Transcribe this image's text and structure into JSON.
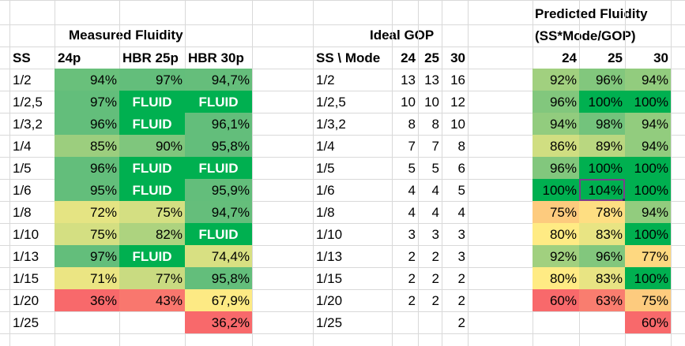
{
  "titles": {
    "measured": "Measured Fluidity",
    "ideal": "Ideal GOP",
    "predicted_line1": "Predicted Fluidity",
    "predicted_line2": "(SS*Mode/GOP)"
  },
  "headers": {
    "ss": "SS",
    "m24": "24p",
    "m25": "HBR 25p",
    "m30": "HBR 30p",
    "ss_mode": "SS \\ Mode",
    "g24": "24",
    "g25": "25",
    "g30": "30",
    "p24": "24",
    "p25": "25",
    "p30": "30"
  },
  "colors": {
    "fluid": "#00b050",
    "green": "#63be7b",
    "yellow": "#ffeb84",
    "red": "#f8696b"
  },
  "selected_cell": "104%",
  "rows": [
    {
      "ss": "1/2",
      "m24": "94%",
      "m25": "97%",
      "m30": "94,7%",
      "g24": "13",
      "g25": "13",
      "g30": "16",
      "p24": "92%",
      "p25": "96%",
      "p30": "94%"
    },
    {
      "ss": "1/2,5",
      "m24": "97%",
      "m25": "FLUID",
      "m30": "FLUID",
      "g24": "10",
      "g25": "10",
      "g30": "12",
      "p24": "96%",
      "p25": "100%",
      "p30": "100%"
    },
    {
      "ss": "1/3,2",
      "m24": "96%",
      "m25": "FLUID",
      "m30": "96,1%",
      "g24": "8",
      "g25": "8",
      "g30": "10",
      "p24": "94%",
      "p25": "98%",
      "p30": "94%"
    },
    {
      "ss": "1/4",
      "m24": "85%",
      "m25": "90%",
      "m30": "95,8%",
      "g24": "7",
      "g25": "7",
      "g30": "8",
      "p24": "86%",
      "p25": "89%",
      "p30": "94%"
    },
    {
      "ss": "1/5",
      "m24": "96%",
      "m25": "FLUID",
      "m30": "FLUID",
      "g24": "5",
      "g25": "5",
      "g30": "6",
      "p24": "96%",
      "p25": "100%",
      "p30": "100%"
    },
    {
      "ss": "1/6",
      "m24": "95%",
      "m25": "FLUID",
      "m30": "95,9%",
      "g24": "4",
      "g25": "4",
      "g30": "5",
      "p24": "100%",
      "p25": "104%",
      "p30": "100%"
    },
    {
      "ss": "1/8",
      "m24": "72%",
      "m25": "75%",
      "m30": "94,7%",
      "g24": "4",
      "g25": "4",
      "g30": "4",
      "p24": "75%",
      "p25": "78%",
      "p30": "94%"
    },
    {
      "ss": "1/10",
      "m24": "75%",
      "m25": "82%",
      "m30": "FLUID",
      "g24": "3",
      "g25": "3",
      "g30": "3",
      "p24": "80%",
      "p25": "83%",
      "p30": "100%"
    },
    {
      "ss": "1/13",
      "m24": "97%",
      "m25": "FLUID",
      "m30": "74,4%",
      "g24": "2",
      "g25": "2",
      "g30": "3",
      "p24": "92%",
      "p25": "96%",
      "p30": "77%"
    },
    {
      "ss": "1/15",
      "m24": "71%",
      "m25": "77%",
      "m30": "95,8%",
      "g24": "2",
      "g25": "2",
      "g30": "2",
      "p24": "80%",
      "p25": "83%",
      "p30": "100%"
    },
    {
      "ss": "1/20",
      "m24": "36%",
      "m25": "43%",
      "m30": "67,9%",
      "g24": "2",
      "g25": "2",
      "g30": "2",
      "p24": "60%",
      "p25": "63%",
      "p30": "75%"
    },
    {
      "ss": "1/25",
      "m24": "",
      "m25": "",
      "m30": "36,2%",
      "g24": "",
      "g25": "",
      "g30": "2",
      "p24": "",
      "p25": "",
      "p30": "60%"
    }
  ]
}
